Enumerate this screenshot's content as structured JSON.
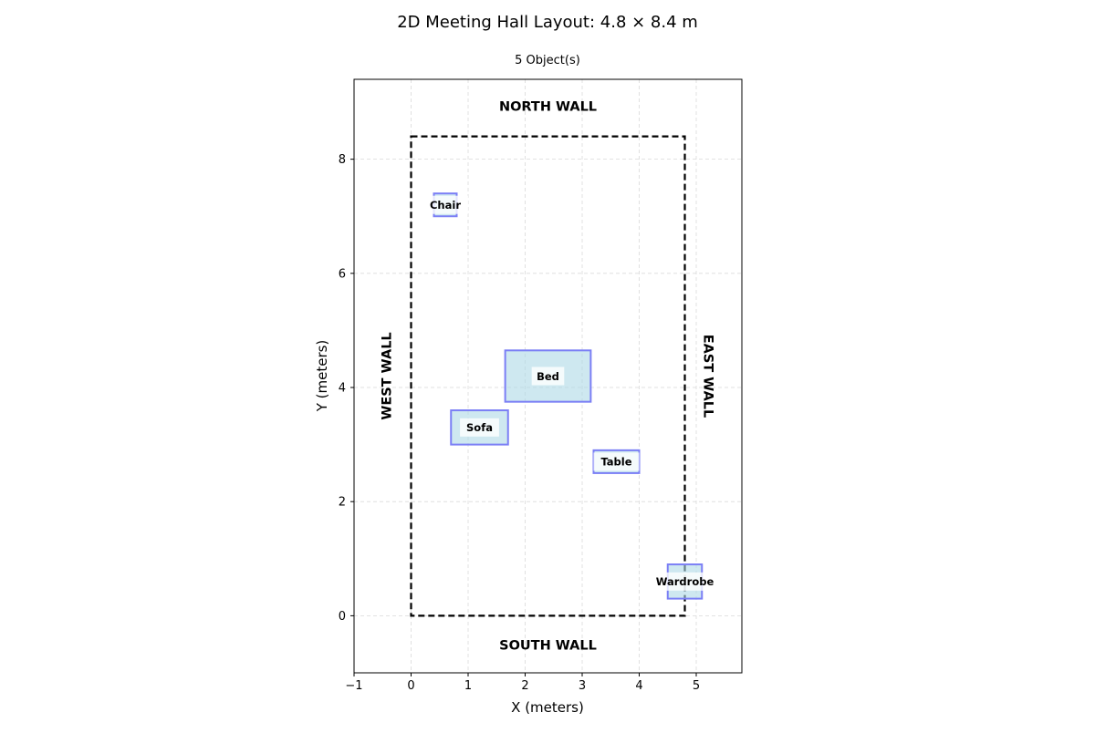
{
  "chart_data": {
    "type": "floor-plan",
    "title": "2D Meeting Hall Layout: 4.8 × 8.4 m",
    "subtitle": "5 Object(s)",
    "xlabel": "X (meters)",
    "ylabel": "Y (meters)",
    "xlim": [
      -1,
      5.8
    ],
    "ylim": [
      -1,
      9.4
    ],
    "xticks": [
      -1,
      0,
      1,
      2,
      3,
      4,
      5
    ],
    "xtick_labels": [
      "−1",
      "0",
      "1",
      "2",
      "3",
      "4",
      "5"
    ],
    "yticks": [
      0,
      2,
      4,
      6,
      8
    ],
    "ytick_labels": [
      "0",
      "2",
      "4",
      "6",
      "8"
    ],
    "grid": true,
    "room": {
      "width": 4.8,
      "depth": 8.4
    },
    "walls": {
      "north": "NORTH WALL",
      "south": "SOUTH WALL",
      "west": "WEST WALL",
      "east": "EAST WALL"
    },
    "objects": [
      {
        "label": "Chair",
        "x": 0.4,
        "y": 7.0,
        "width": 0.4,
        "height": 0.4
      },
      {
        "label": "Bed",
        "x": 1.65,
        "y": 3.75,
        "width": 1.5,
        "height": 0.9
      },
      {
        "label": "Sofa",
        "x": 0.7,
        "y": 3.0,
        "width": 1.0,
        "height": 0.6
      },
      {
        "label": "Table",
        "x": 3.2,
        "y": 2.5,
        "width": 0.8,
        "height": 0.4
      },
      {
        "label": "Wardrobe",
        "x": 4.5,
        "y": 0.3,
        "width": 0.6,
        "height": 0.6
      }
    ],
    "colors": {
      "object_fill": "#add8e6",
      "object_edge": "#7b7ff5",
      "room_edge": "#000000",
      "grid": "#d9d9d9"
    }
  }
}
